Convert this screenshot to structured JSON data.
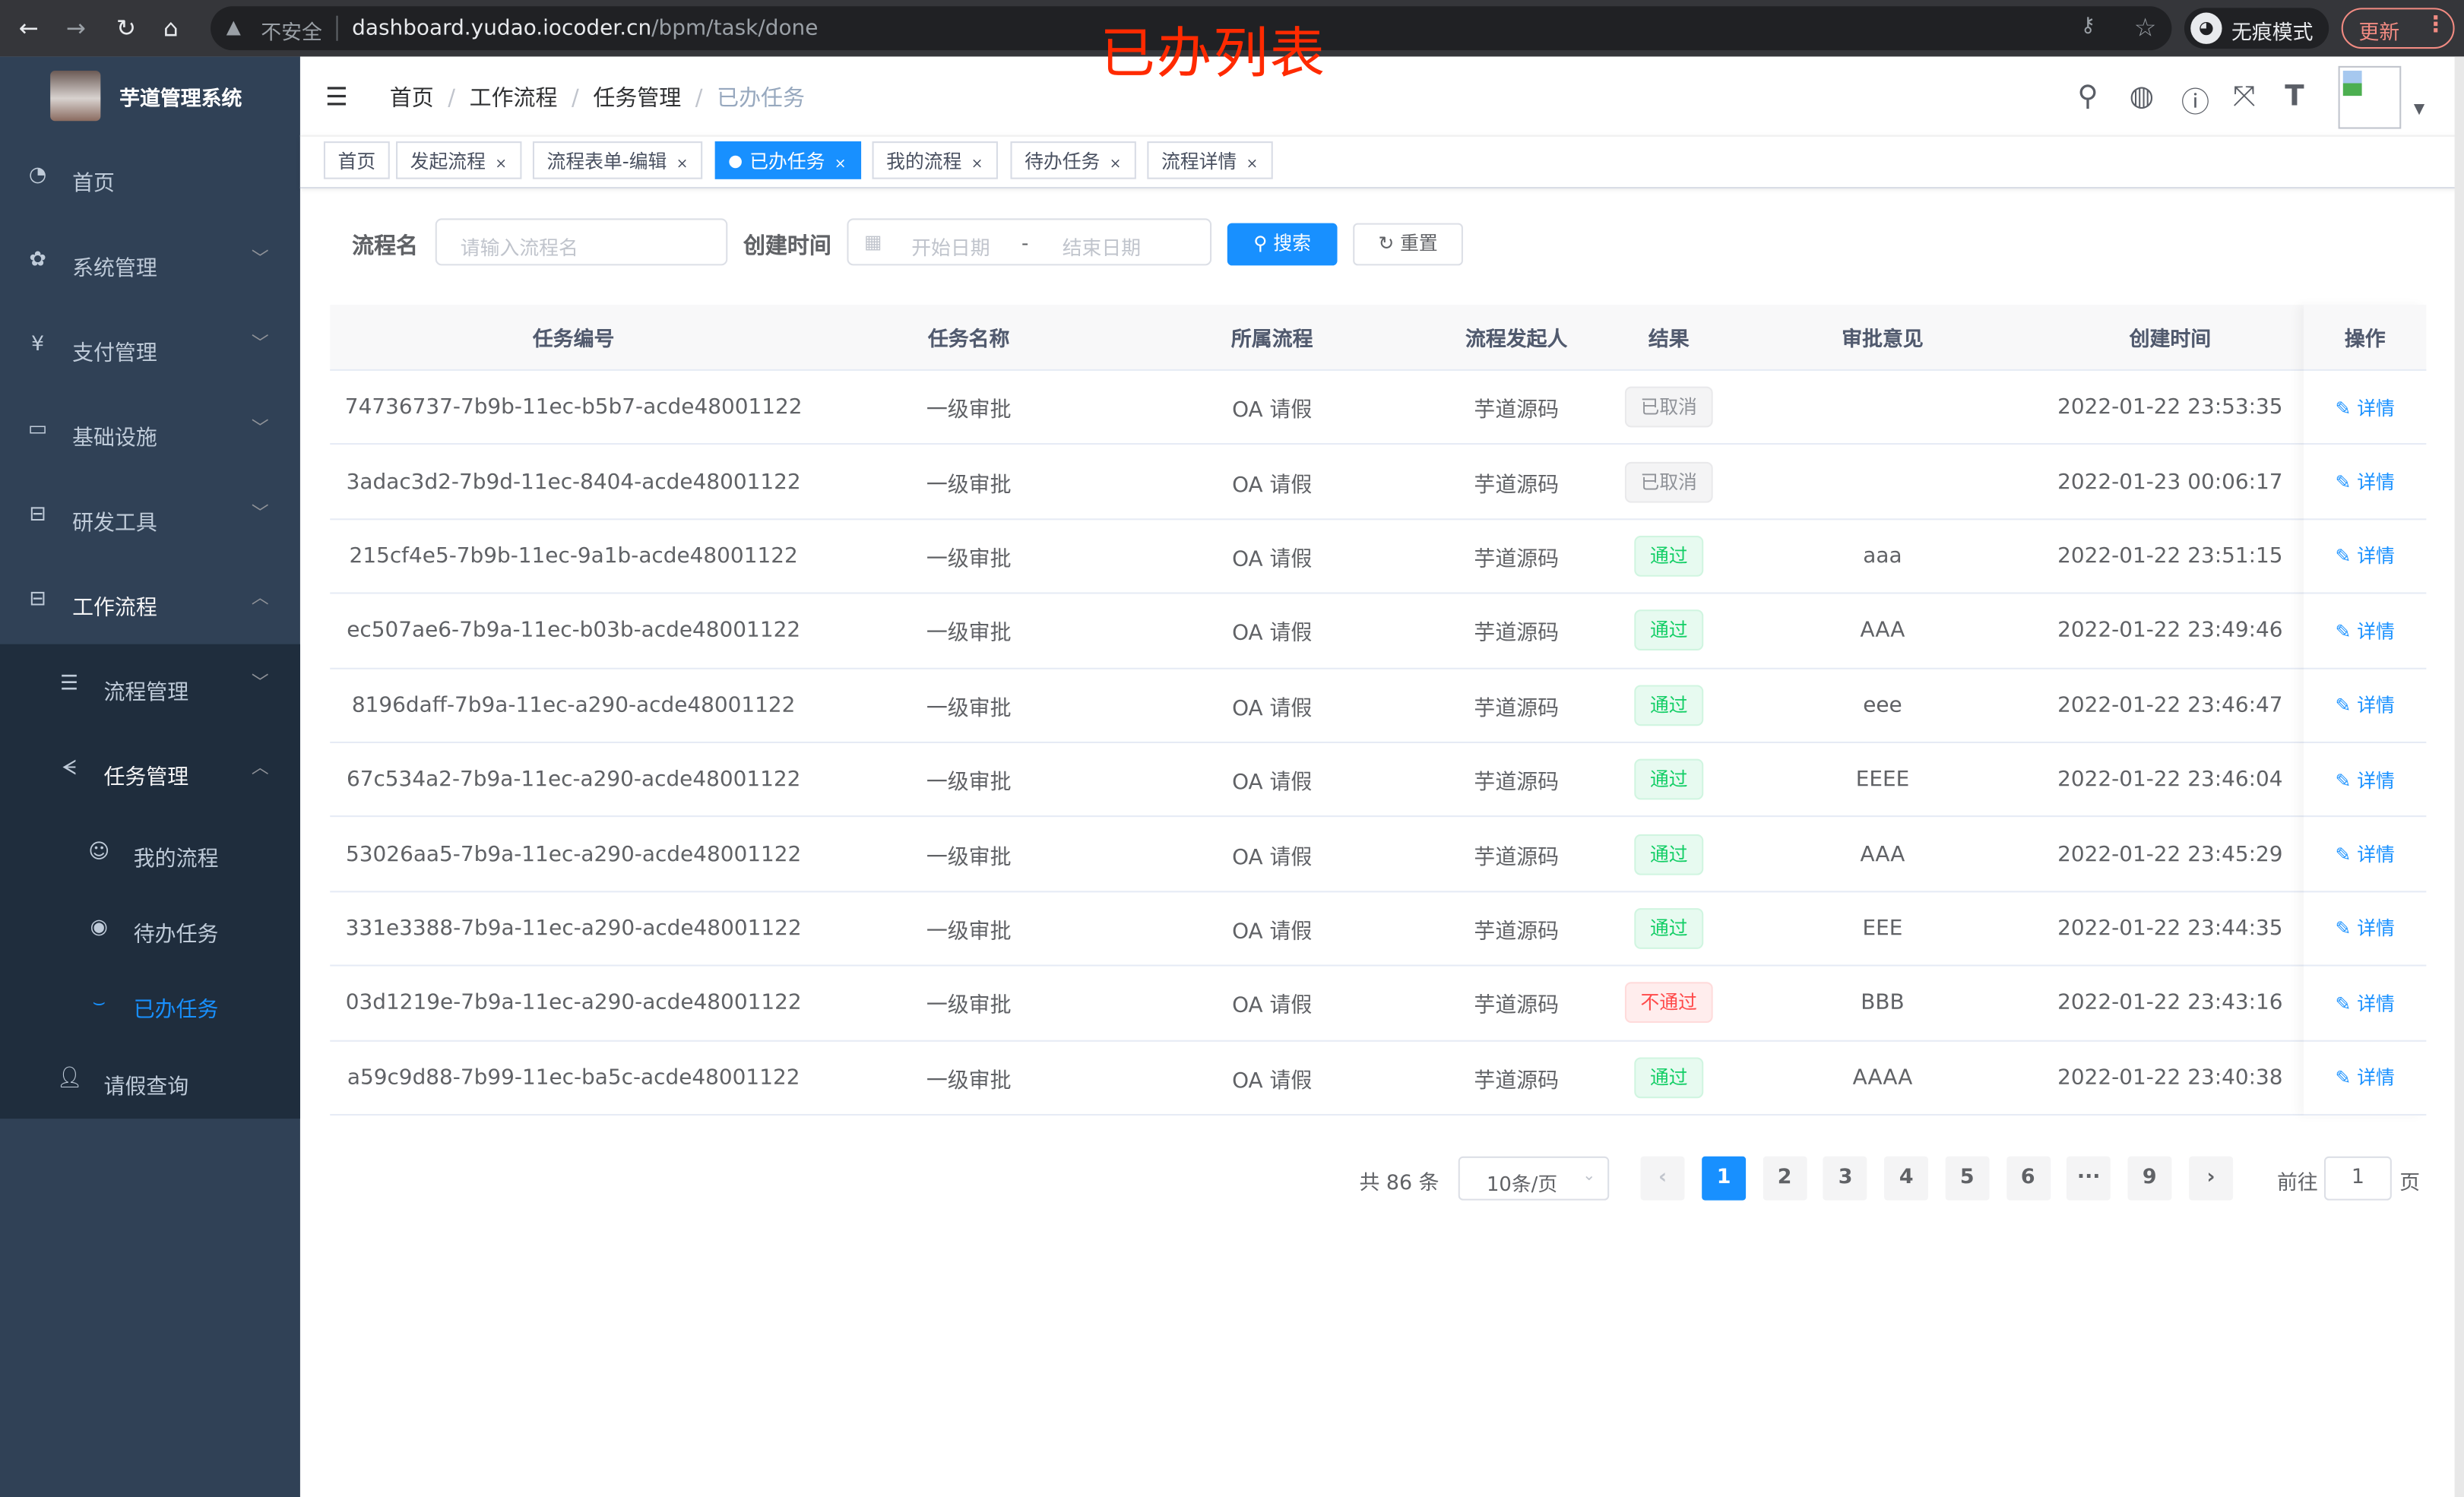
{
  "browser": {
    "security_label": "不安全",
    "url_host": "dashboard.yudao.iocoder.cn",
    "url_path": "/bpm/task/done",
    "incognito_label": "无痕模式",
    "update_label": "更新"
  },
  "annotation": "已办列表",
  "app": {
    "title": "芋道管理系统"
  },
  "sidebar": {
    "items": [
      {
        "label": "首页",
        "icon": "dashboard-icon"
      },
      {
        "label": "系统管理",
        "icon": "gear-icon"
      },
      {
        "label": "支付管理",
        "icon": "yen-icon"
      },
      {
        "label": "基础设施",
        "icon": "monitor-icon"
      },
      {
        "label": "研发工具",
        "icon": "toolbox-icon"
      },
      {
        "label": "工作流程",
        "icon": "toolbox-icon"
      }
    ],
    "sub_items": [
      {
        "label": "流程管理",
        "icon": "list-icon"
      },
      {
        "label": "任务管理",
        "icon": "task-icon"
      },
      {
        "label": "我的流程",
        "icon": "face-icon"
      },
      {
        "label": "待办任务",
        "icon": "eye-icon"
      },
      {
        "label": "已办任务",
        "icon": "eye-closed-icon"
      },
      {
        "label": "请假查询",
        "icon": "user-icon"
      }
    ]
  },
  "breadcrumb": [
    "首页",
    "工作流程",
    "任务管理",
    "已办任务"
  ],
  "tags": [
    {
      "label": "首页",
      "closable": false
    },
    {
      "label": "发起流程",
      "closable": true
    },
    {
      "label": "流程表单-编辑",
      "closable": true
    },
    {
      "label": "已办任务",
      "closable": true,
      "active": true
    },
    {
      "label": "我的流程",
      "closable": true
    },
    {
      "label": "待办任务",
      "closable": true
    },
    {
      "label": "流程详情",
      "closable": true
    }
  ],
  "filters": {
    "name_label": "流程名",
    "name_placeholder": "请输入流程名",
    "time_label": "创建时间",
    "start_placeholder": "开始日期",
    "range_sep": "-",
    "end_placeholder": "结束日期",
    "search_label": "搜索",
    "reset_label": "重置"
  },
  "table": {
    "columns": [
      "任务编号",
      "任务名称",
      "所属流程",
      "流程发起人",
      "结果",
      "审批意见",
      "创建时间",
      "操作"
    ],
    "action_label": "详情",
    "rows": [
      {
        "id": "74736737-7b9b-11ec-b5b7-acde48001122",
        "name": "一级审批",
        "process": "OA 请假",
        "starter": "芋道源码",
        "result": "已取消",
        "status": "cancel",
        "comment": "",
        "time": "2022-01-22 23:53:35"
      },
      {
        "id": "3adac3d2-7b9d-11ec-8404-acde48001122",
        "name": "一级审批",
        "process": "OA 请假",
        "starter": "芋道源码",
        "result": "已取消",
        "status": "cancel",
        "comment": "",
        "time": "2022-01-23 00:06:17"
      },
      {
        "id": "215cf4e5-7b9b-11ec-9a1b-acde48001122",
        "name": "一级审批",
        "process": "OA 请假",
        "starter": "芋道源码",
        "result": "通过",
        "status": "pass",
        "comment": "aaa",
        "time": "2022-01-22 23:51:15"
      },
      {
        "id": "ec507ae6-7b9a-11ec-b03b-acde48001122",
        "name": "一级审批",
        "process": "OA 请假",
        "starter": "芋道源码",
        "result": "通过",
        "status": "pass",
        "comment": "AAA",
        "time": "2022-01-22 23:49:46"
      },
      {
        "id": "8196daff-7b9a-11ec-a290-acde48001122",
        "name": "一级审批",
        "process": "OA 请假",
        "starter": "芋道源码",
        "result": "通过",
        "status": "pass",
        "comment": "eee",
        "time": "2022-01-22 23:46:47"
      },
      {
        "id": "67c534a2-7b9a-11ec-a290-acde48001122",
        "name": "一级审批",
        "process": "OA 请假",
        "starter": "芋道源码",
        "result": "通过",
        "status": "pass",
        "comment": "EEEE",
        "time": "2022-01-22 23:46:04"
      },
      {
        "id": "53026aa5-7b9a-11ec-a290-acde48001122",
        "name": "一级审批",
        "process": "OA 请假",
        "starter": "芋道源码",
        "result": "通过",
        "status": "pass",
        "comment": "AAA",
        "time": "2022-01-22 23:45:29"
      },
      {
        "id": "331e3388-7b9a-11ec-a290-acde48001122",
        "name": "一级审批",
        "process": "OA 请假",
        "starter": "芋道源码",
        "result": "通过",
        "status": "pass",
        "comment": "EEE",
        "time": "2022-01-22 23:44:35"
      },
      {
        "id": "03d1219e-7b9a-11ec-a290-acde48001122",
        "name": "一级审批",
        "process": "OA 请假",
        "starter": "芋道源码",
        "result": "不通过",
        "status": "fail",
        "comment": "BBB",
        "time": "2022-01-22 23:43:16"
      },
      {
        "id": "a59c9d88-7b99-11ec-ba5c-acde48001122",
        "name": "一级审批",
        "process": "OA 请假",
        "starter": "芋道源码",
        "result": "通过",
        "status": "pass",
        "comment": "AAAA",
        "time": "2022-01-22 23:40:38"
      }
    ]
  },
  "pagination": {
    "total_label": "共 86 条",
    "page_size": "10条/页",
    "pages": [
      "1",
      "2",
      "3",
      "4",
      "5",
      "6",
      "···",
      "9"
    ],
    "current": "1",
    "goto_label": "前往",
    "goto_value": "1",
    "page_suffix": "页"
  },
  "colors": {
    "primary": "#1890ff",
    "sidebar": "#304156",
    "submenu": "#1f2d3d",
    "success": "#13ce66",
    "danger": "#ff4949",
    "annotation": "#ff2a00"
  }
}
